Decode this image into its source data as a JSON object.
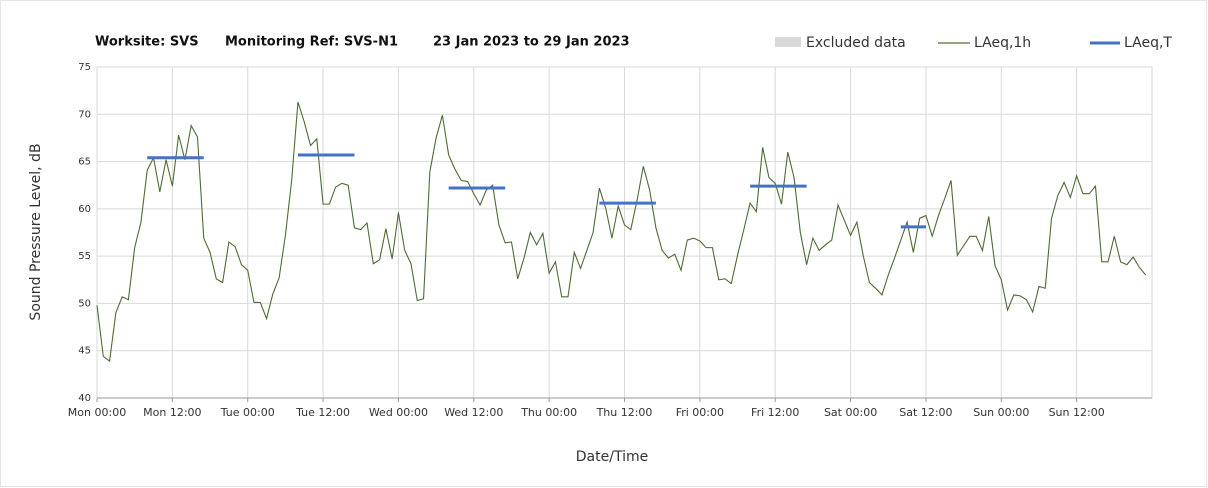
{
  "chart_data": {
    "type": "line",
    "title": [
      "Worksite: SVS",
      "Monitoring Ref: SVS-N1",
      "23 Jan 2023 to 29 Jan 2023"
    ],
    "xlabel": "Date/Time",
    "ylabel": "Sound Pressure Level, dB",
    "xlim": [
      0,
      168
    ],
    "ylim": [
      40,
      75
    ],
    "yticks": [
      40,
      45,
      50,
      55,
      60,
      65,
      70,
      75
    ],
    "xticks": [
      {
        "value": 0,
        "label": "Mon 00:00"
      },
      {
        "value": 12,
        "label": "Mon 12:00"
      },
      {
        "value": 24,
        "label": "Tue 00:00"
      },
      {
        "value": 36,
        "label": "Tue 12:00"
      },
      {
        "value": 48,
        "label": "Wed 00:00"
      },
      {
        "value": 60,
        "label": "Wed 12:00"
      },
      {
        "value": 72,
        "label": "Thu 00:00"
      },
      {
        "value": 84,
        "label": "Thu 12:00"
      },
      {
        "value": 96,
        "label": "Fri 00:00"
      },
      {
        "value": 108,
        "label": "Fri 12:00"
      },
      {
        "value": 120,
        "label": "Sat 00:00"
      },
      {
        "value": 132,
        "label": "Sat 12:00"
      },
      {
        "value": 144,
        "label": "Sun 00:00"
      },
      {
        "value": 156,
        "label": "Sun 12:00"
      }
    ],
    "grid": true,
    "excluded": {
      "name": "Excluded data",
      "color": "#d9d9d9"
    },
    "series": [
      {
        "name": "LAeq,1h",
        "color": "#4f6b35",
        "x": [
          0,
          1,
          2,
          3,
          4,
          5,
          6,
          7,
          8,
          9,
          10,
          11,
          12,
          13,
          14,
          15,
          16,
          17,
          18,
          19,
          20,
          21,
          22,
          23,
          24,
          25,
          26,
          27,
          28,
          29,
          30,
          31,
          32,
          33,
          34,
          35,
          36,
          37,
          38,
          39,
          40,
          41,
          42,
          43,
          44,
          45,
          46,
          47,
          48,
          49,
          50,
          51,
          52,
          53,
          54,
          55,
          56,
          57,
          58,
          59,
          60,
          61,
          62,
          63,
          64,
          65,
          66,
          67,
          68,
          69,
          70,
          71,
          72,
          73,
          74,
          75,
          76,
          77,
          78,
          79,
          80,
          81,
          82,
          83,
          84,
          85,
          86,
          87,
          88,
          89,
          90,
          91,
          92,
          93,
          94,
          95,
          96,
          97,
          98,
          99,
          100,
          101,
          102,
          103,
          104,
          105,
          106,
          107,
          108,
          109,
          110,
          111,
          112,
          113,
          114,
          115,
          116,
          117,
          118,
          119,
          120,
          121,
          122,
          123,
          124,
          125,
          126,
          127,
          128,
          129,
          130,
          131,
          132,
          133,
          134,
          135,
          136,
          137,
          138,
          139,
          140,
          141,
          142,
          143,
          144,
          145,
          146,
          147,
          148,
          149,
          150,
          151,
          152,
          153,
          154,
          155,
          156,
          157,
          158,
          159,
          160,
          161,
          162,
          163,
          164,
          165,
          166,
          167
        ],
        "values": [
          49.8,
          44.4,
          43.9,
          49.0,
          50.7,
          50.4,
          55.9,
          58.6,
          64.1,
          65.4,
          61.8,
          65.2,
          62.4,
          67.8,
          65.2,
          68.8,
          67.6,
          56.9,
          55.4,
          52.6,
          52.2,
          56.5,
          56.0,
          54.1,
          53.5,
          50.1,
          50.1,
          48.4,
          51.0,
          52.7,
          57.2,
          63.0,
          71.3,
          69.2,
          66.7,
          67.4,
          60.5,
          60.5,
          62.3,
          62.7,
          62.5,
          58.0,
          57.8,
          58.5,
          54.2,
          54.6,
          57.9,
          54.7,
          59.6,
          55.6,
          54.2,
          50.3,
          50.5,
          63.9,
          67.5,
          69.9,
          65.7,
          64.2,
          63.0,
          62.9,
          61.6,
          60.4,
          62.0,
          62.5,
          58.3,
          56.4,
          56.5,
          52.6,
          54.8,
          57.5,
          56.2,
          57.4,
          53.2,
          54.4,
          50.7,
          50.7,
          55.4,
          53.7,
          55.6,
          57.5,
          62.2,
          60.1,
          56.9,
          60.3,
          58.3,
          57.8,
          60.9,
          64.5,
          62.0,
          58.0,
          55.6,
          54.8,
          55.2,
          53.5,
          56.7,
          56.9,
          56.6,
          55.9,
          55.9,
          52.5,
          52.6,
          52.1,
          55.1,
          57.8,
          60.6,
          59.7,
          66.5,
          63.3,
          62.7,
          60.5,
          66.0,
          63.3,
          57.5,
          54.1,
          56.9,
          55.6,
          56.2,
          56.7,
          60.4,
          58.8,
          57.2,
          58.6,
          55.1,
          52.2,
          51.6,
          50.9,
          53.0,
          54.8,
          56.7,
          58.6,
          55.4,
          59.0,
          59.3,
          57.1,
          59.3,
          61.1,
          63.0,
          55.1,
          56.1,
          57.1,
          57.1,
          55.6,
          59.2,
          54.0,
          52.5,
          49.3,
          50.9,
          50.8,
          50.4,
          49.1,
          51.8,
          51.6,
          59.0,
          61.4,
          62.8,
          61.2,
          63.5,
          61.6,
          61.6,
          62.4,
          54.4,
          54.4,
          57.1,
          54.4,
          54.1,
          54.9,
          53.8,
          53.0
        ]
      },
      {
        "name": "LAeq,T",
        "color": "#4472c4",
        "segments": [
          {
            "start": 8,
            "end": 17,
            "value": 65.4
          },
          {
            "start": 32,
            "end": 41,
            "value": 65.7
          },
          {
            "start": 56,
            "end": 65,
            "value": 62.2
          },
          {
            "start": 80,
            "end": 89,
            "value": 60.6
          },
          {
            "start": 104,
            "end": 113,
            "value": 62.4
          },
          {
            "start": 128,
            "end": 132,
            "value": 58.1
          }
        ]
      }
    ]
  }
}
